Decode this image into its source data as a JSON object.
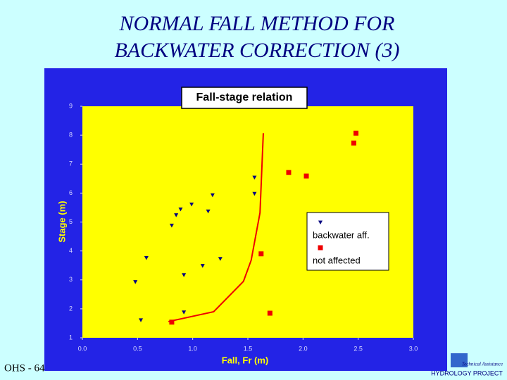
{
  "slide": {
    "title": [
      "NORMAL FALL METHOD FOR",
      "BACKWATER CORRECTION (3)"
    ],
    "footer": "OHS - 64",
    "logo": {
      "text": "HYDROLOGY PROJECT",
      "subtitle": "Technical Assistance"
    }
  },
  "chart_data": {
    "type": "scatter",
    "title": "Fall-stage relation",
    "x_label": "Fall, Fr (m)",
    "y_label": "Stage (m)",
    "xlim": [
      0,
      3
    ],
    "ylim": [
      1,
      9
    ],
    "xticks": [
      {
        "value": 0,
        "label": "0.0"
      },
      0.5,
      {
        "value": 1,
        "label": "1.0"
      },
      1.5,
      {
        "value": 2,
        "label": "2.0"
      },
      2.5,
      {
        "value": 3,
        "label": "3.0"
      }
    ],
    "yticks": [
      1,
      2,
      3,
      4,
      5,
      6,
      7,
      8,
      9
    ],
    "grid": false,
    "legend": "right",
    "series": [
      {
        "name": "backwater aff.",
        "color": "#000080",
        "marker": "triangle-down",
        "x": [
          0.48,
          0.53,
          0.58,
          0.81,
          0.85,
          0.89,
          0.99,
          1.14,
          1.18,
          0.92,
          0.92,
          1.09,
          1.25,
          1.56,
          1.56
        ],
        "values": [
          2.93,
          1.61,
          3.76,
          4.88,
          5.24,
          5.44,
          5.61,
          5.37,
          5.93,
          3.17,
          1.88,
          3.49,
          3.73,
          6.54,
          5.98
        ]
      },
      {
        "name": "not affected",
        "color": "#ee0000",
        "marker": "square",
        "x": [
          0.81,
          1.62,
          1.7,
          1.87,
          2.03,
          2.46,
          2.48
        ],
        "values": [
          1.54,
          3.9,
          1.85,
          6.71,
          6.59,
          7.73,
          8.07
        ]
      },
      {
        "color": "#ee0000",
        "marker": "line",
        "x": [
          0.78,
          1.19,
          1.46,
          1.53,
          1.61,
          1.64
        ],
        "values": [
          1.56,
          1.9,
          2.95,
          3.68,
          5.32,
          8.07
        ]
      }
    ]
  }
}
